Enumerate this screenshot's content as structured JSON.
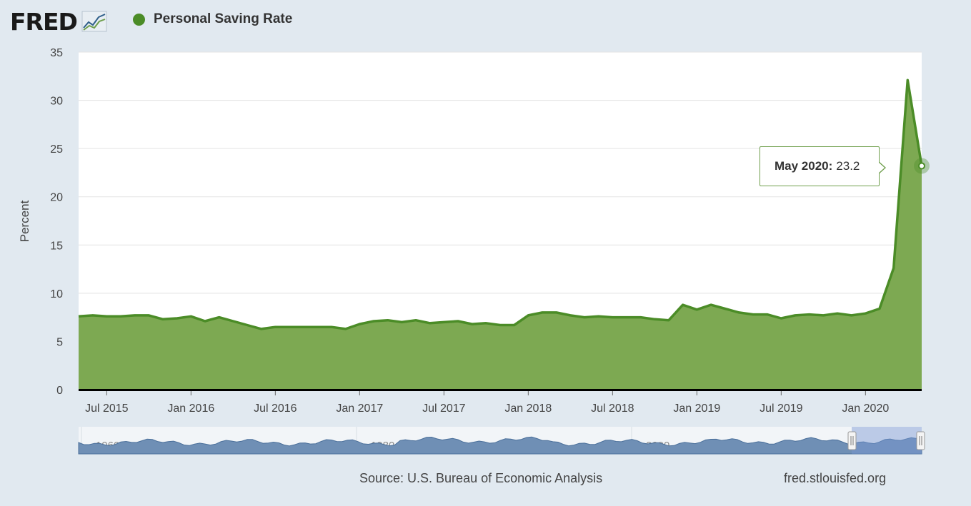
{
  "header": {
    "logo_text": "FRED",
    "series_label": "Personal Saving Rate",
    "series_color": "#4b8c27"
  },
  "tooltip": {
    "date": "May 2020:",
    "value": "23.2"
  },
  "footer": {
    "source": "Source: U.S. Bureau of Economic Analysis",
    "url": "fred.stlouisfed.org"
  },
  "navigator": {
    "labels": [
      "1960",
      "1980",
      "2000"
    ]
  },
  "chart_data": {
    "type": "area",
    "title": "Personal Saving Rate",
    "ylabel": "Percent",
    "ylim": [
      0,
      35
    ],
    "yticks": [
      0,
      5,
      10,
      15,
      20,
      25,
      30,
      35
    ],
    "xlim": [
      "2015-05",
      "2020-05"
    ],
    "xticks": [
      {
        "date": "2015-07",
        "label": "Jul 2015"
      },
      {
        "date": "2016-01",
        "label": "Jan 2016"
      },
      {
        "date": "2016-07",
        "label": "Jul 2016"
      },
      {
        "date": "2017-01",
        "label": "Jan 2017"
      },
      {
        "date": "2017-07",
        "label": "Jul 2017"
      },
      {
        "date": "2018-01",
        "label": "Jan 2018"
      },
      {
        "date": "2018-07",
        "label": "Jul 2018"
      },
      {
        "date": "2019-01",
        "label": "Jan 2019"
      },
      {
        "date": "2019-07",
        "label": "Jul 2019"
      },
      {
        "date": "2020-01",
        "label": "Jan 2020"
      }
    ],
    "grid": true,
    "series": [
      {
        "color": "#4b8c27",
        "fill": "#7da952",
        "x": [
          "2015-05",
          "2015-06",
          "2015-07",
          "2015-08",
          "2015-09",
          "2015-10",
          "2015-11",
          "2015-12",
          "2016-01",
          "2016-02",
          "2016-03",
          "2016-04",
          "2016-05",
          "2016-06",
          "2016-07",
          "2016-08",
          "2016-09",
          "2016-10",
          "2016-11",
          "2016-12",
          "2017-01",
          "2017-02",
          "2017-03",
          "2017-04",
          "2017-05",
          "2017-06",
          "2017-07",
          "2017-08",
          "2017-09",
          "2017-10",
          "2017-11",
          "2017-12",
          "2018-01",
          "2018-02",
          "2018-03",
          "2018-04",
          "2018-05",
          "2018-06",
          "2018-07",
          "2018-08",
          "2018-09",
          "2018-10",
          "2018-11",
          "2018-12",
          "2019-01",
          "2019-02",
          "2019-03",
          "2019-04",
          "2019-05",
          "2019-06",
          "2019-07",
          "2019-08",
          "2019-09",
          "2019-10",
          "2019-11",
          "2019-12",
          "2020-01",
          "2020-02",
          "2020-03",
          "2020-04",
          "2020-05"
        ],
        "values": [
          7.6,
          7.7,
          7.6,
          7.6,
          7.7,
          7.7,
          7.3,
          7.4,
          7.6,
          7.1,
          7.5,
          7.1,
          6.7,
          6.3,
          6.5,
          6.5,
          6.5,
          6.5,
          6.5,
          6.3,
          6.8,
          7.1,
          7.2,
          7.0,
          7.2,
          6.9,
          7.0,
          7.1,
          6.8,
          6.9,
          6.7,
          6.7,
          7.7,
          8.0,
          8.0,
          7.7,
          7.5,
          7.6,
          7.5,
          7.5,
          7.5,
          7.3,
          7.2,
          8.8,
          8.3,
          8.8,
          8.4,
          8.0,
          7.8,
          7.8,
          7.4,
          7.7,
          7.8,
          7.7,
          7.9,
          7.7,
          7.9,
          8.4,
          12.6,
          32.1,
          23.2
        ]
      }
    ]
  }
}
